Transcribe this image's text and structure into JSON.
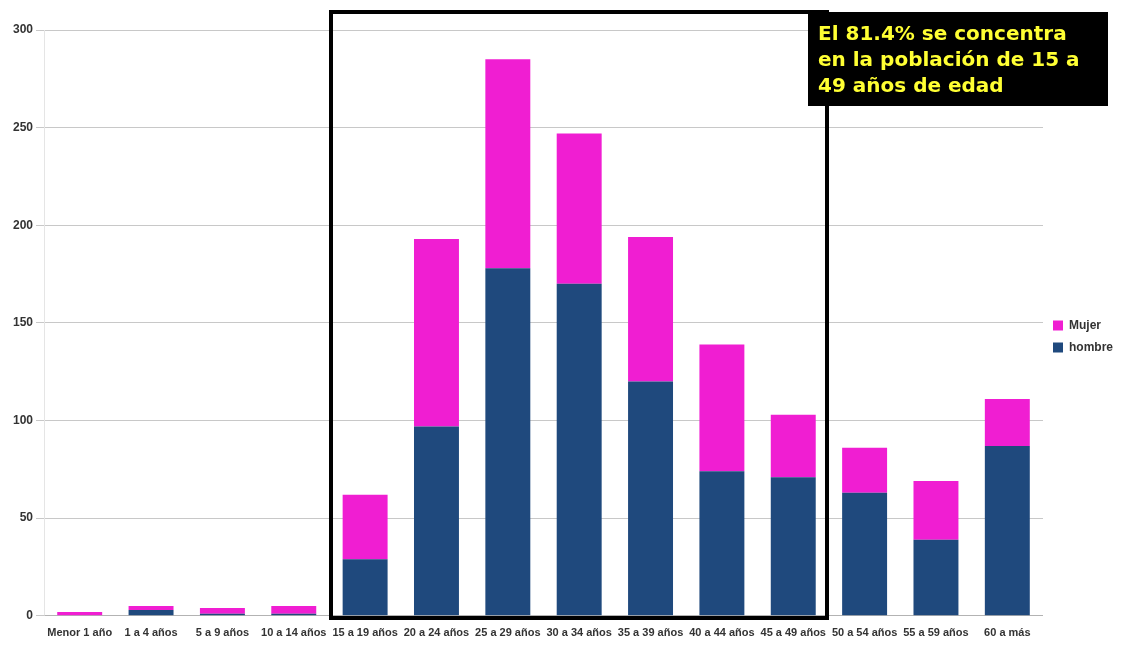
{
  "chart_data": {
    "type": "bar",
    "stacked": true,
    "categories": [
      "Menor 1 año",
      "1 a 4 años",
      "5 a 9 años",
      "10 a 14 años",
      "15 a 19 años",
      "20 a 24 años",
      "25 a 29 años",
      "30 a 34 años",
      "35 a 39 años",
      "40 a 44 años",
      "45 a 49 años",
      "50 a 54 años",
      "55 a 59 años",
      "60 a más"
    ],
    "series": [
      {
        "name": "hombre",
        "color": "#1f497d",
        "values": [
          0,
          3,
          1,
          1,
          29,
          97,
          178,
          170,
          120,
          74,
          71,
          63,
          39,
          87
        ]
      },
      {
        "name": "Mujer",
        "color": "#f01ed2",
        "values": [
          2,
          2,
          3,
          4,
          33,
          96,
          107,
          77,
          74,
          65,
          32,
          23,
          30,
          24
        ]
      }
    ],
    "ylim": [
      0,
      300
    ],
    "yticks": [
      0,
      50,
      100,
      150,
      200,
      250,
      300
    ],
    "grid": "y",
    "legend": "right",
    "annotations": [
      "El 81.4% se concentra en la población de 15 a 49 años de edad"
    ]
  }
}
